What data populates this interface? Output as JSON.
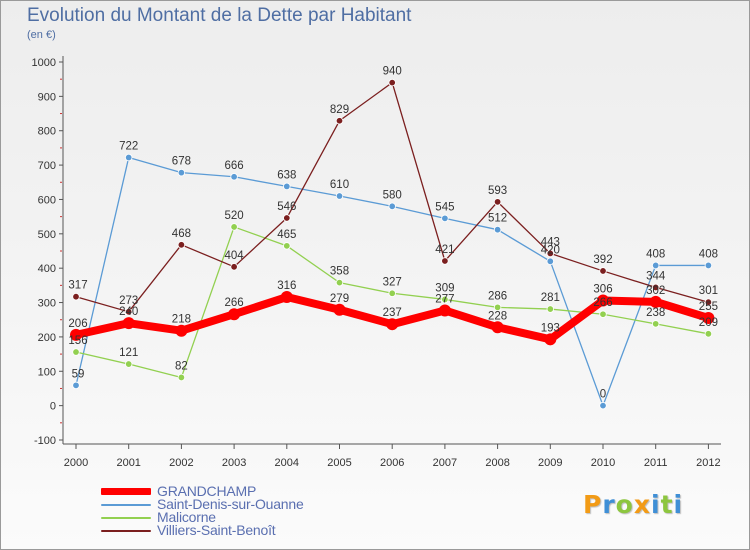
{
  "header": {
    "title": "Evolution du Montant de la Dette par Habitant",
    "unit": "(en €)"
  },
  "logo": {
    "text": "Proxiti"
  },
  "colors": {
    "GRANDCHAMP": "#ff0000",
    "Saint-Denis-sur-Ouanne": "#5b9bd5",
    "Malicorne": "#92d050",
    "Villiers-Saint-Benoît": "#7b1f1f"
  },
  "chart_data": {
    "type": "line",
    "title": "Evolution du Montant de la Dette par Habitant",
    "subtitle": "(en €)",
    "xlabel": "",
    "ylabel": "",
    "ylim": [
      -100,
      1000
    ],
    "yticks": [
      -100,
      0,
      100,
      200,
      300,
      400,
      500,
      600,
      700,
      800,
      900,
      1000
    ],
    "grid": false,
    "legend_position": "bottom-left",
    "categories": [
      "2000",
      "2001",
      "2002",
      "2003",
      "2004",
      "2005",
      "2006",
      "2007",
      "2008",
      "2009",
      "2010",
      "2011",
      "2012"
    ],
    "series": [
      {
        "name": "GRANDCHAMP",
        "values": [
          206,
          240,
          218,
          266,
          316,
          279,
          237,
          277,
          228,
          193,
          306,
          302,
          255
        ]
      },
      {
        "name": "Saint-Denis-sur-Ouanne",
        "values": [
          59,
          722,
          678,
          666,
          638,
          610,
          580,
          545,
          512,
          420,
          0,
          408,
          408
        ]
      },
      {
        "name": "Malicorne",
        "values": [
          156,
          121,
          82,
          520,
          465,
          358,
          327,
          309,
          286,
          281,
          266,
          238,
          209
        ]
      },
      {
        "name": "Villiers-Saint-Benoît",
        "values": [
          317,
          273,
          468,
          404,
          546,
          829,
          940,
          421,
          593,
          443,
          392,
          344,
          301
        ]
      }
    ]
  }
}
